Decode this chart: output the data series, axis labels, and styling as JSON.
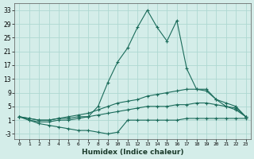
{
  "xlabel": "Humidex (Indice chaleur)",
  "xlim": [
    -0.5,
    23.5
  ],
  "ylim": [
    -4.5,
    35
  ],
  "yticks": [
    33,
    29,
    25,
    21,
    17,
    13,
    9,
    5,
    1,
    -3
  ],
  "xticks": [
    0,
    1,
    2,
    3,
    4,
    5,
    6,
    7,
    8,
    9,
    10,
    11,
    12,
    13,
    14,
    15,
    16,
    17,
    18,
    19,
    20,
    21,
    22,
    23
  ],
  "bg_color": "#d4ede9",
  "grid_color": "#aed8d2",
  "line_color": "#1a6b5a",
  "lines_y": [
    [
      2,
      1,
      0.5,
      0.5,
      1,
      1,
      1.5,
      2,
      5,
      12,
      18,
      22,
      28,
      33,
      28,
      24,
      30,
      16,
      10,
      10,
      7,
      5,
      4,
      2
    ],
    [
      2,
      1.5,
      1,
      1,
      1.5,
      2,
      2.5,
      3,
      4,
      5,
      6,
      6.5,
      7,
      8,
      8.5,
      9,
      9.5,
      10,
      10,
      9.5,
      7,
      6,
      5,
      2
    ],
    [
      2,
      1.5,
      1,
      1,
      1.5,
      1.5,
      2,
      2,
      2.5,
      3,
      3.5,
      4,
      4.5,
      5,
      5,
      5,
      5.5,
      5.5,
      6,
      6,
      5.5,
      5,
      4.5,
      2
    ],
    [
      2,
      1,
      0,
      -0.5,
      -1,
      -1.5,
      -2,
      -2,
      -2.5,
      -3,
      -2.5,
      1,
      1,
      1,
      1,
      1,
      1,
      1.5,
      1.5,
      1.5,
      1.5,
      1.5,
      1.5,
      1.5
    ]
  ]
}
